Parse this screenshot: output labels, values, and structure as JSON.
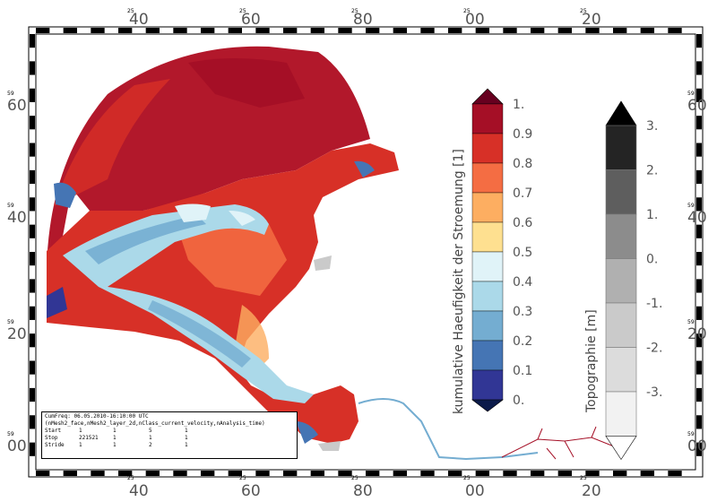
{
  "map": {
    "axes": {
      "x_ticks": [
        {
          "minor": "25",
          "major": "40"
        },
        {
          "minor": "25",
          "major": "60"
        },
        {
          "minor": "25",
          "major": "80"
        },
        {
          "minor": "25",
          "major": "00"
        },
        {
          "minor": "25",
          "major": "20"
        }
      ],
      "y_ticks": [
        {
          "minor": "59",
          "major": "60"
        },
        {
          "minor": "59",
          "major": "40"
        },
        {
          "minor": "59",
          "major": "20"
        },
        {
          "minor": "59",
          "major": "00"
        }
      ]
    },
    "colorbar_flow": {
      "label": "kumulative Haeufigkeit der Stroemung [1]",
      "tick_labels": [
        "1.",
        "0.9",
        "0.8",
        "0.7",
        "0.6",
        "0.5",
        "0.4",
        "0.3",
        "0.2",
        "0.1",
        "0."
      ],
      "colors": [
        "#a50f26",
        "#d73027",
        "#f46d43",
        "#fdae61",
        "#fee090",
        "#e0f3f8",
        "#abd9e9",
        "#74add1",
        "#4575b4",
        "#313695"
      ],
      "over_color": "#67001f",
      "under_color": "#0b1a4a"
    },
    "colorbar_topo": {
      "label": "Topographie [m]",
      "tick_labels": [
        "3.",
        "2.",
        "1.",
        "0.",
        "-1.",
        "-2.",
        "-3."
      ],
      "colors": [
        "#242424",
        "#5e5e5e",
        "#8c8c8c",
        "#b0b0b0",
        "#cacaca",
        "#dcdcdc",
        "#f2f2f2"
      ],
      "over_color": "#000000",
      "under_color": "#ffffff"
    },
    "info": {
      "line1": "CumFreq: 06.05.2010-16:10:00 UTC",
      "line2": "(nMesh2_face,nMesh2_layer_2d,nClass_current_velocity,nAnalysis_time)",
      "rows": [
        {
          "label": "Start",
          "c1": "1",
          "c2": "1",
          "c3": "5",
          "c4": "1"
        },
        {
          "label": "Stop",
          "c1": "221521",
          "c2": "1",
          "c3": "1",
          "c4": "1"
        },
        {
          "label": "Stride",
          "c1": "1",
          "c2": "1",
          "c3": "2",
          "c4": "1"
        }
      ]
    }
  }
}
